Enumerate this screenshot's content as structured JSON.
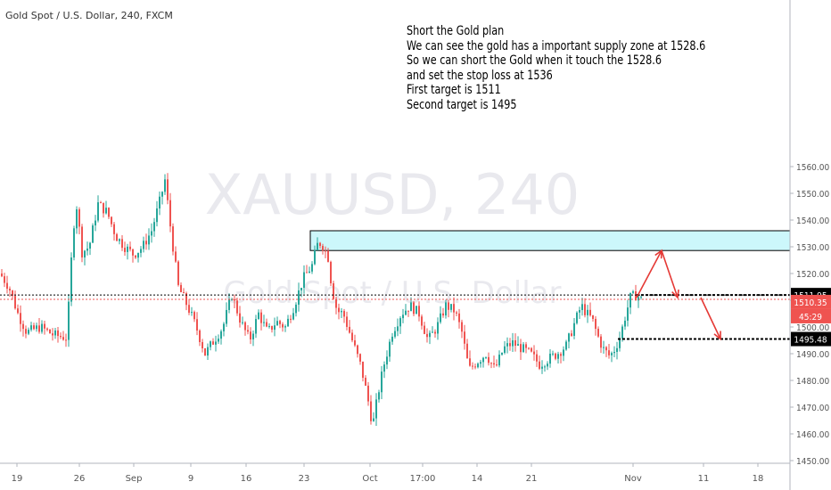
{
  "header": {
    "title": "Gold Spot / U.S. Dollar, 240, FXCM"
  },
  "watermark": {
    "symbol": "XAUUSD, 240",
    "name": "Gold Spot / U.S. Dollar"
  },
  "note": {
    "lines": [
      "Short the Gold plan",
      "We can see the gold has a important supply zone at 1528.6",
      "So we can short the Gold when it touch the 1528.6",
      "and set the stop loss at 1536",
      "First target is 1511",
      "Second target is 1495"
    ]
  },
  "chart_data": {
    "type": "line",
    "title": "Gold Spot / U.S. Dollar, 240, FXCM",
    "xlabel": "",
    "ylabel": "",
    "ylim": [
      1447,
      1567
    ],
    "x_ticks": [
      "19",
      "26",
      "Sep",
      "9",
      "16",
      "23",
      "Oct",
      "17:00",
      "14",
      "21",
      "Nov",
      "11",
      "18"
    ],
    "y_ticks": [
      1450,
      1460,
      1470,
      1480,
      1490,
      1500,
      1510,
      1520,
      1530,
      1540,
      1550,
      1560
    ],
    "y_tick_labels": [
      "1450.00",
      "1460.00",
      "1470.00",
      "1480.00",
      "1490.00",
      "1500.00",
      "1510.00",
      "1520.00",
      "1530.00",
      "1540.00",
      "1550.00",
      "1560.00"
    ],
    "price_path": [
      [
        0,
        1520
      ],
      [
        10,
        1515
      ],
      [
        20,
        1505
      ],
      [
        30,
        1498
      ],
      [
        45,
        1500
      ],
      [
        60,
        1497
      ],
      [
        75,
        1496
      ],
      [
        80,
        1525
      ],
      [
        85,
        1548
      ],
      [
        92,
        1528
      ],
      [
        100,
        1530
      ],
      [
        110,
        1546
      ],
      [
        120,
        1543
      ],
      [
        130,
        1534
      ],
      [
        140,
        1530
      ],
      [
        150,
        1527
      ],
      [
        160,
        1530
      ],
      [
        170,
        1536
      ],
      [
        180,
        1548
      ],
      [
        185,
        1555
      ],
      [
        192,
        1535
      ],
      [
        200,
        1515
      ],
      [
        210,
        1508
      ],
      [
        220,
        1500
      ],
      [
        230,
        1490
      ],
      [
        240,
        1495
      ],
      [
        250,
        1500
      ],
      [
        260,
        1512
      ],
      [
        270,
        1502
      ],
      [
        280,
        1495
      ],
      [
        290,
        1505
      ],
      [
        300,
        1498
      ],
      [
        310,
        1502
      ],
      [
        320,
        1500
      ],
      [
        330,
        1508
      ],
      [
        340,
        1518
      ],
      [
        350,
        1523
      ],
      [
        357,
        1532
      ],
      [
        363,
        1530
      ],
      [
        368,
        1526
      ],
      [
        372,
        1515
      ],
      [
        378,
        1506
      ],
      [
        385,
        1505
      ],
      [
        395,
        1495
      ],
      [
        405,
        1485
      ],
      [
        412,
        1474
      ],
      [
        418,
        1463
      ],
      [
        424,
        1475
      ],
      [
        430,
        1485
      ],
      [
        440,
        1498
      ],
      [
        450,
        1505
      ],
      [
        460,
        1508
      ],
      [
        470,
        1505
      ],
      [
        480,
        1495
      ],
      [
        490,
        1500
      ],
      [
        500,
        1508
      ],
      [
        510,
        1506
      ],
      [
        518,
        1498
      ],
      [
        526,
        1484
      ],
      [
        535,
        1487
      ],
      [
        545,
        1490
      ],
      [
        555,
        1484
      ],
      [
        565,
        1492
      ],
      [
        575,
        1494
      ],
      [
        585,
        1492
      ],
      [
        595,
        1490
      ],
      [
        605,
        1486
      ],
      [
        615,
        1488
      ],
      [
        625,
        1490
      ],
      [
        635,
        1493
      ],
      [
        645,
        1502
      ],
      [
        652,
        1508
      ],
      [
        658,
        1505
      ],
      [
        664,
        1503
      ],
      [
        670,
        1497
      ],
      [
        676,
        1492
      ],
      [
        684,
        1489
      ],
      [
        690,
        1492
      ],
      [
        696,
        1497
      ],
      [
        702,
        1505
      ],
      [
        707,
        1511
      ],
      [
        714,
        1512
      ],
      [
        720,
        1510
      ]
    ],
    "supply_zone": {
      "low": 1528.6,
      "high": 1536
    },
    "levels": [
      {
        "label": "1511.95",
        "value": 1511.95,
        "color": "#000000"
      },
      {
        "label": "1510.35",
        "value": 1510.35,
        "color": "#ef5350"
      },
      {
        "label": "1495.48",
        "value": 1495.48,
        "color": "#000000"
      }
    ],
    "countdown": "45:29",
    "projection": [
      {
        "x": 714,
        "y": 1511
      },
      {
        "x": 742,
        "y": 1528.6
      },
      {
        "x": 760,
        "y": 1511
      },
      {
        "x": 786,
        "y": 1511
      },
      {
        "x": 808,
        "y": 1495.5
      }
    ],
    "colors": {
      "up": "#26a69a",
      "down": "#ef5350",
      "zone": "#ccf7fb",
      "arrow": "#e53935"
    }
  }
}
